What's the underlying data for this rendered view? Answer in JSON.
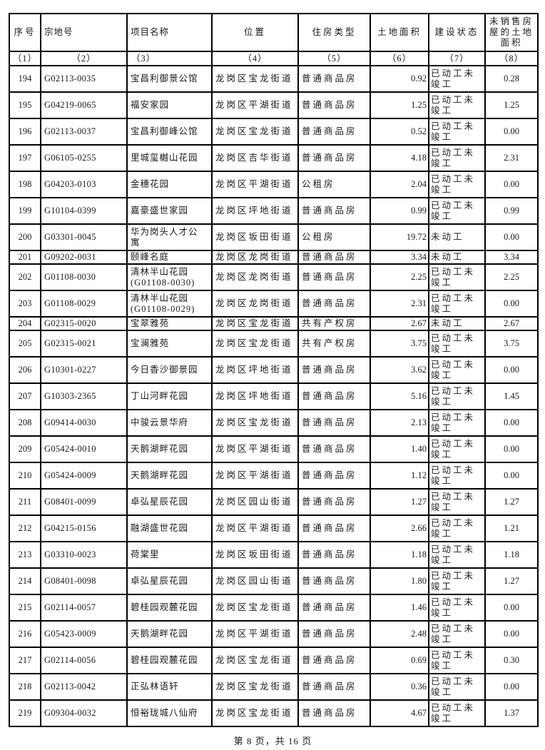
{
  "table": {
    "columns": [
      {
        "key": "no",
        "label": "序号",
        "code": "（1）"
      },
      {
        "key": "parcel",
        "label": "宗地号",
        "code": "（2）"
      },
      {
        "key": "name",
        "label": "项目名称",
        "code": "（3）"
      },
      {
        "key": "location",
        "label": "位置",
        "code": "（4）"
      },
      {
        "key": "type",
        "label": "住房类型",
        "code": "（5）"
      },
      {
        "key": "area",
        "label": "土地面积",
        "code": "（6）"
      },
      {
        "key": "status",
        "label": "建设状态",
        "code": "（7）"
      },
      {
        "key": "unsold",
        "label": "未销售房\n屋的土地\n面积",
        "code": "（8）"
      }
    ],
    "rows": [
      {
        "no": "194",
        "parcel": "G02113-0035",
        "name": "宝昌利御景公馆",
        "location": "龙岗区宝龙街道",
        "type": "普通商品房",
        "area": "0.92",
        "status": "已动工未竣工",
        "unsold": "0.28"
      },
      {
        "no": "195",
        "parcel": "G04219-0065",
        "name": "福安家园",
        "location": "龙岗区平湖街道",
        "type": "普通商品房",
        "area": "1.25",
        "status": "已动工未竣工",
        "unsold": "1.25"
      },
      {
        "no": "196",
        "parcel": "G02113-0037",
        "name": "宝昌利御峰公馆",
        "location": "龙岗区宝龙街道",
        "type": "普通商品房",
        "area": "0.52",
        "status": "已动工未竣工",
        "unsold": "0.00"
      },
      {
        "no": "197",
        "parcel": "G06105-0255",
        "name": "里城玺樾山花园",
        "location": "龙岗区吉华街道",
        "type": "普通商品房",
        "area": "4.18",
        "status": "已动工未竣工",
        "unsold": "2.31"
      },
      {
        "no": "198",
        "parcel": "G04203-0103",
        "name": "金穗花园",
        "location": "龙岗区平湖街道",
        "type": "公租房",
        "area": "2.04",
        "status": "已动工未竣工",
        "unsold": "0.00"
      },
      {
        "no": "199",
        "parcel": "G10104-0399",
        "name": "嘉豪盛世家园",
        "location": "龙岗区坪地街道",
        "type": "普通商品房",
        "area": "0.99",
        "status": "已动工未竣工",
        "unsold": "0.99"
      },
      {
        "no": "200",
        "parcel": "G03301-0045",
        "name": "华为岗头人才公\n寓",
        "location": "龙岗区坂田街道",
        "type": "公租房",
        "area": "19.72",
        "status": "未动工",
        "unsold": "0.00"
      },
      {
        "no": "201",
        "parcel": "G09202-0031",
        "name": "颐峰名庭",
        "location": "龙岗区龙岗街道",
        "type": "普通商品房",
        "area": "3.34",
        "status": "未动工",
        "unsold": "3.34"
      },
      {
        "no": "202",
        "parcel": "G01108-0030",
        "name": "清林半山花园\n(G01108-0030)",
        "location": "龙岗区龙岗街道",
        "type": "普通商品房",
        "area": "2.25",
        "status": "已动工未竣工",
        "unsold": "2.25"
      },
      {
        "no": "203",
        "parcel": "G01108-0029",
        "name": "清林半山花园\n(G01108-0029)",
        "location": "龙岗区龙岗街道",
        "type": "普通商品房",
        "area": "2.31",
        "status": "已动工未竣工",
        "unsold": "0.00"
      },
      {
        "no": "204",
        "parcel": "G02315-0020",
        "name": "宝翠雅苑",
        "location": "龙岗区宝龙街道",
        "type": "共有产权房",
        "area": "2.67",
        "status": "未动工",
        "unsold": "2.67"
      },
      {
        "no": "205",
        "parcel": "G02315-0021",
        "name": "宝澜雅苑",
        "location": "龙岗区宝龙街道",
        "type": "共有产权房",
        "area": "3.75",
        "status": "已动工未竣工",
        "unsold": "3.75"
      },
      {
        "no": "206",
        "parcel": "G10301-0227",
        "name": "今日香沙御景园",
        "location": "龙岗区坪地街道",
        "type": "普通商品房",
        "area": "3.62",
        "status": "已动工未竣工",
        "unsold": "0.00"
      },
      {
        "no": "207",
        "parcel": "G10303-2365",
        "name": "丁山河畔花园",
        "location": "龙岗区坪地街道",
        "type": "普通商品房",
        "area": "5.16",
        "status": "已动工未竣工",
        "unsold": "1.45"
      },
      {
        "no": "208",
        "parcel": "G09414-0030",
        "name": "中骏云景华府",
        "location": "龙岗区宝龙街道",
        "type": "普通商品房",
        "area": "2.13",
        "status": "已动工未竣工",
        "unsold": "0.00"
      },
      {
        "no": "209",
        "parcel": "G05424-0010",
        "name": "天鹅湖畔花园",
        "location": "龙岗区平湖街道",
        "type": "普通商品房",
        "area": "1.40",
        "status": "已动工未竣工",
        "unsold": "0.00"
      },
      {
        "no": "210",
        "parcel": "G05424-0009",
        "name": "天鹅湖畔花园",
        "location": "龙岗区平湖街道",
        "type": "普通商品房",
        "area": "1.12",
        "status": "已动工未竣工",
        "unsold": "0.00"
      },
      {
        "no": "211",
        "parcel": "G08401-0099",
        "name": "卓弘星辰花园",
        "location": "龙岗区园山街道",
        "type": "普通商品房",
        "area": "1.27",
        "status": "已动工未竣工",
        "unsold": "1.27"
      },
      {
        "no": "212",
        "parcel": "G04215-0156",
        "name": "融湖盛世花园",
        "location": "龙岗区平湖街道",
        "type": "普通商品房",
        "area": "2.66",
        "status": "已动工未竣工",
        "unsold": "1.21"
      },
      {
        "no": "213",
        "parcel": "G03310-0023",
        "name": "荷棠里",
        "location": "龙岗区坂田街道",
        "type": "普通商品房",
        "area": "1.18",
        "status": "已动工未竣工",
        "unsold": "1.18"
      },
      {
        "no": "214",
        "parcel": "G08401-0098",
        "name": "卓弘星辰花园",
        "location": "龙岗区园山街道",
        "type": "普通商品房",
        "area": "1.80",
        "status": "已动工未竣工",
        "unsold": "1.27"
      },
      {
        "no": "215",
        "parcel": "G02114-0057",
        "name": "碧桂园观麓花园",
        "location": "龙岗区宝龙街道",
        "type": "普通商品房",
        "area": "1.46",
        "status": "已动工未竣工",
        "unsold": "0.00"
      },
      {
        "no": "216",
        "parcel": "G05423-0009",
        "name": "天鹅湖畔花园",
        "location": "龙岗区平湖街道",
        "type": "普通商品房",
        "area": "2.48",
        "status": "已动工未竣工",
        "unsold": "0.00"
      },
      {
        "no": "217",
        "parcel": "G02114-0056",
        "name": "碧桂园观麓花园",
        "location": "龙岗区宝龙街道",
        "type": "普通商品房",
        "area": "0.69",
        "status": "已动工未竣工",
        "unsold": "0.30"
      },
      {
        "no": "218",
        "parcel": "G02113-0042",
        "name": "正弘林语轩",
        "location": "龙岗区宝龙街道",
        "type": "普通商品房",
        "area": "0.36",
        "status": "已动工未竣工",
        "unsold": "0.00"
      },
      {
        "no": "219",
        "parcel": "G09304-0032",
        "name": "恒裕珑城八仙府",
        "location": "龙岗区宝龙街道",
        "type": "普通商品房",
        "area": "4.67",
        "status": "已动工未竣工",
        "unsold": "1.37"
      }
    ]
  },
  "footer": {
    "page_label": "第 8 页，共 16 页"
  }
}
